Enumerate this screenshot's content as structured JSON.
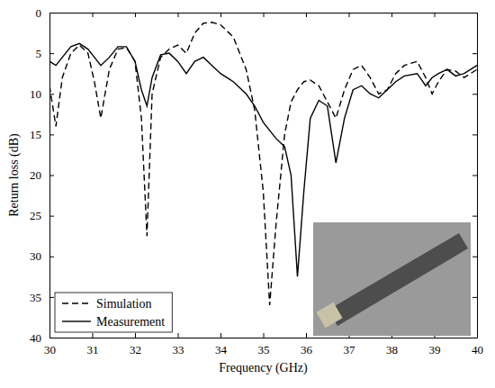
{
  "chart_data": {
    "type": "line",
    "x_label": "Frequency (GHz)",
    "y_label": "Return loss (dB)",
    "x": [
      30.0,
      30.15,
      30.3,
      30.5,
      30.7,
      30.9,
      31.05,
      31.2,
      31.4,
      31.6,
      31.8,
      32.0,
      32.15,
      32.28,
      32.4,
      32.6,
      32.8,
      33.0,
      33.2,
      33.4,
      33.6,
      33.8,
      34.0,
      34.3,
      34.6,
      34.8,
      35.0,
      35.15,
      35.3,
      35.5,
      35.65,
      35.8,
      35.95,
      36.1,
      36.3,
      36.5,
      36.7,
      36.9,
      37.1,
      37.3,
      37.5,
      37.7,
      37.9,
      38.1,
      38.3,
      38.6,
      38.8,
      38.95,
      39.1,
      39.3,
      39.5,
      39.7,
      39.85,
      40.0
    ],
    "series": [
      {
        "name": "Simulation",
        "color": "#000000",
        "line_style": "dashed",
        "values": [
          9,
          14,
          8,
          5,
          4,
          5,
          8.5,
          13,
          7,
          4.5,
          4.3,
          6,
          13,
          27.5,
          10,
          5.5,
          4.5,
          4,
          5,
          2.5,
          1.3,
          1.2,
          1.5,
          3,
          7,
          12,
          22,
          36,
          26,
          15,
          11,
          9.5,
          8.5,
          8.3,
          9,
          11,
          13,
          9.5,
          7,
          6.5,
          8,
          10,
          9.5,
          7.5,
          6.5,
          6,
          8,
          10,
          8.5,
          7,
          7.2,
          8,
          7.5,
          7
        ]
      },
      {
        "name": "Measurement",
        "color": "#000000",
        "line_style": "solid",
        "values": [
          6,
          6.5,
          5.5,
          4.2,
          3.8,
          4.5,
          5.5,
          6.5,
          5.5,
          4.2,
          4.2,
          6,
          9.5,
          11.5,
          8,
          5.2,
          5,
          6,
          7.5,
          6,
          5.5,
          6.5,
          7.5,
          8.5,
          10,
          11.5,
          13.5,
          14.5,
          15.5,
          16.5,
          20,
          32.5,
          22,
          13,
          10.8,
          11.5,
          18.5,
          13,
          9.5,
          9,
          10,
          10.5,
          9.5,
          8.5,
          7.8,
          7.5,
          9,
          8,
          7.5,
          7,
          7.8,
          7.5,
          7,
          6.5
        ]
      }
    ],
    "xlim": [
      30,
      40
    ],
    "xticks": [
      30,
      31,
      32,
      33,
      34,
      35,
      36,
      37,
      38,
      39,
      40
    ],
    "ylim": [
      40,
      0
    ],
    "yticks": [
      0,
      5,
      10,
      15,
      20,
      25,
      30,
      35,
      40
    ],
    "grid": false,
    "legend": "lower left"
  }
}
